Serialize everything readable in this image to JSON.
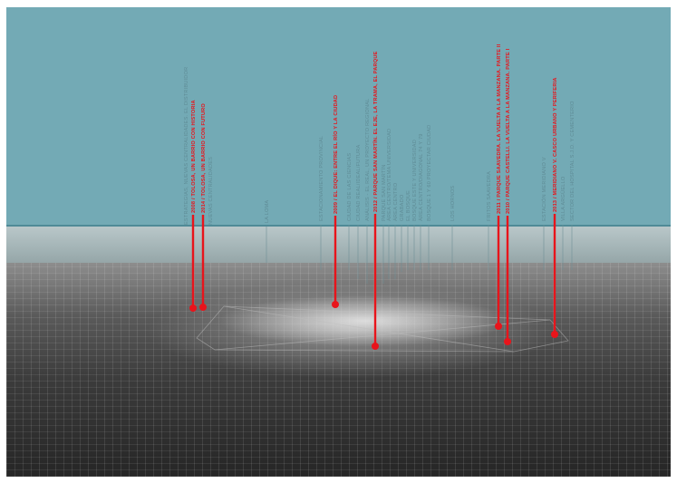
{
  "colors": {
    "sky": "#73aab5",
    "red": "#e8141b",
    "grey_label": "#5f8c96"
  },
  "labels": [
    {
      "text": "2008 / TOLOSA, UN BARRIO CON HISTORIA",
      "kind": "red",
      "marker": true
    },
    {
      "text": "2014 / TOLOSA, UN BARRIO CON FUTURO",
      "kind": "red",
      "marker": true
    },
    {
      "text": "ESTRATEGIAS, NUEVAS CENTRALIDADES. EL DISTRIBUIDOR",
      "kind": "grey"
    },
    {
      "text": "NUEVAS CENTRALIDADES",
      "kind": "grey"
    },
    {
      "text": "LA LOMA",
      "kind": "grey"
    },
    {
      "text": "ESTACIONAMIENTO PROVINCIAL",
      "kind": "grey"
    },
    {
      "text": "2009 / EL DIQUE: ENTRE EL RÍO Y LA CIUDAD",
      "kind": "red",
      "marker": true
    },
    {
      "text": "CIUDAD DE LAS CIENCIAS",
      "kind": "grey"
    },
    {
      "text": "CIUDAD REAL/IDEAL/FUTURA",
      "kind": "grey"
    },
    {
      "text": "ANÁLISIS - EL REAL, UN PROYECTO REGIONAL",
      "kind": "grey"
    },
    {
      "text": "2012 / PARQUE SAN MARTÍN. EL EJE, LA TRAMA, EL PARQUE",
      "kind": "red",
      "marker": true
    },
    {
      "text": "PARQUE SAN MARTÍN",
      "kind": "grey"
    },
    {
      "text": "ÁREA CENTRO/TEMA UNIVERSIDAD",
      "kind": "grey"
    },
    {
      "text": "ÁREA CENTRO",
      "kind": "grey"
    },
    {
      "text": "GRABADO",
      "kind": "grey"
    },
    {
      "text": "EL BOSQUE",
      "kind": "grey"
    },
    {
      "text": "BOSQUE ESTE Y UNIVERSIDAD",
      "kind": "grey"
    },
    {
      "text": "ÁREA CENTRO/DIAGONAL 74 Y 79",
      "kind": "grey"
    },
    {
      "text": "BOSQUE 1 Y 60 PROYECTAR CIUDAD",
      "kind": "grey"
    },
    {
      "text": "LOS HORNOS",
      "kind": "grey"
    },
    {
      "text": "FRITOS SAAVEDRA",
      "kind": "grey"
    },
    {
      "text": "2011 / PARQUE SAAVEDRA. LA VUELTA A LA MANZANA. PARTE II",
      "kind": "red",
      "marker": true
    },
    {
      "text": "2010 / PARQUE CASTELLI. LA VUELTA A LA MANZANA. PARTE I",
      "kind": "red",
      "marker": true
    },
    {
      "text": "ESTACIÓN MERIDIANO V",
      "kind": "grey"
    },
    {
      "text": "2013 / MERIDIANO V. CASCO URBANO Y PERIFERIA",
      "kind": "red",
      "marker": true
    },
    {
      "text": "VILLA ARGÜELLO",
      "kind": "grey"
    },
    {
      "text": "SECTOR DEL HOSPITAL S.J.D. Y CEMENTERIO",
      "kind": "grey"
    }
  ]
}
